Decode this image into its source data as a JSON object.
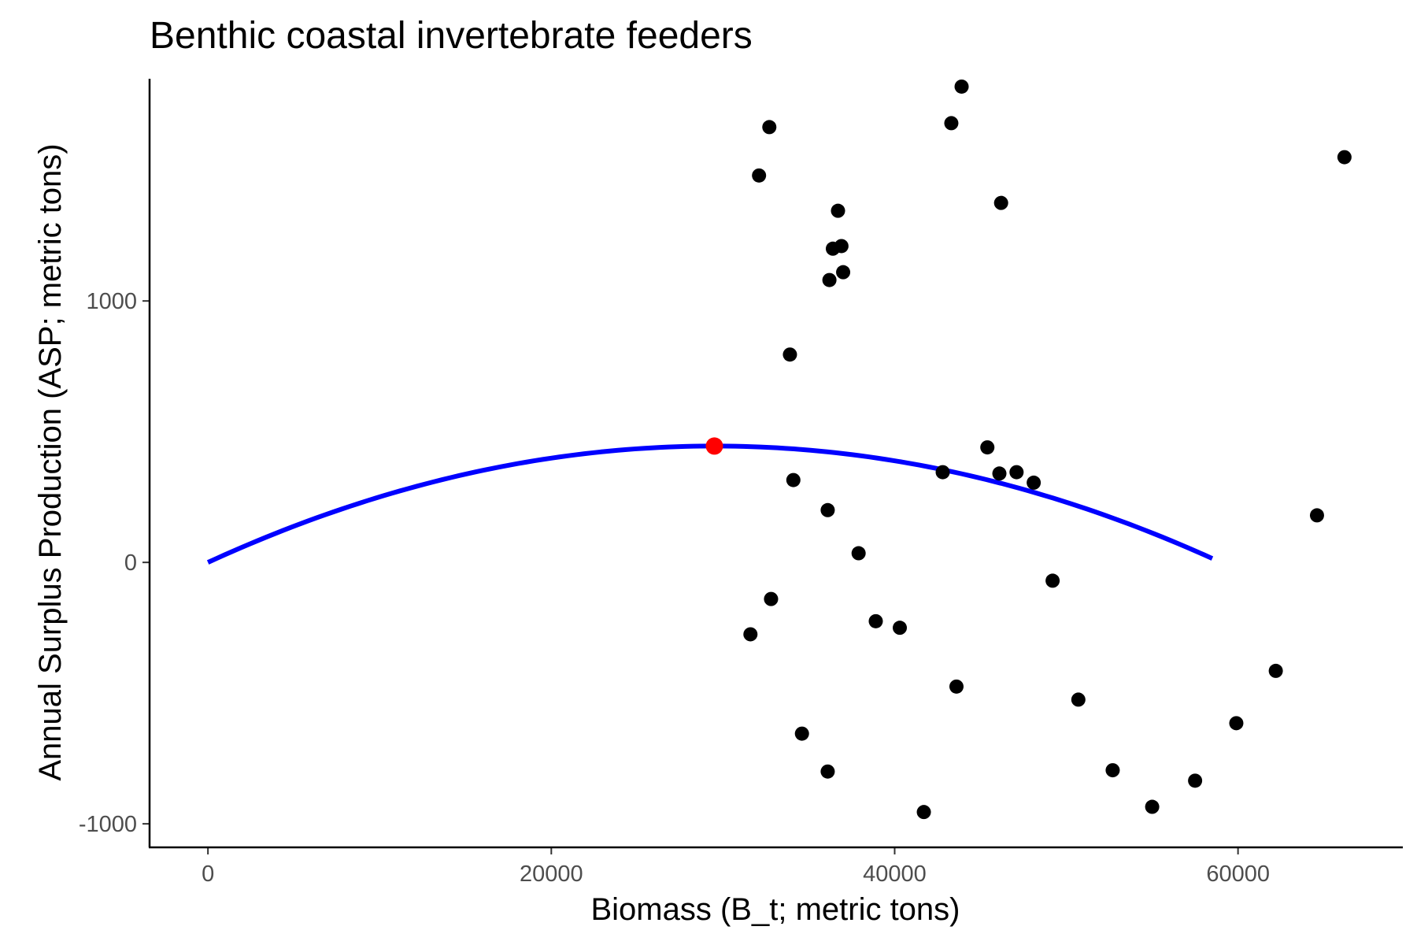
{
  "chart_data": {
    "type": "scatter",
    "title": "Benthic coastal invertebrate feeders",
    "xlabel": "Biomass (B_t; metric tons)",
    "ylabel": "Annual Surplus Production (ASP; metric tons)",
    "xlim": [
      -3400,
      69600
    ],
    "ylim": [
      -1090,
      1850
    ],
    "x_ticks": [
      0,
      20000,
      40000,
      60000
    ],
    "x_tick_labels": [
      "0",
      "20000",
      "40000",
      "60000"
    ],
    "y_ticks": [
      -1000,
      0,
      1000
    ],
    "y_tick_labels": [
      "-1000",
      "0",
      "1000"
    ],
    "grid": false,
    "colors": {
      "points": "#000000",
      "curve": "#0000ff",
      "peak": "#ff0000",
      "axis": "#000000"
    },
    "series": [
      {
        "type": "scatter",
        "points": [
          [
            31600,
            -275
          ],
          [
            32100,
            1480
          ],
          [
            32700,
            1665
          ],
          [
            32800,
            -140
          ],
          [
            33900,
            795
          ],
          [
            34100,
            315
          ],
          [
            34600,
            -655
          ],
          [
            36100,
            200
          ],
          [
            36100,
            -800
          ],
          [
            36200,
            1080
          ],
          [
            36400,
            1200
          ],
          [
            36700,
            1345
          ],
          [
            36900,
            1210
          ],
          [
            37000,
            1110
          ],
          [
            37900,
            35
          ],
          [
            38900,
            -225
          ],
          [
            40300,
            -250
          ],
          [
            41700,
            -955
          ],
          [
            42800,
            345
          ],
          [
            43300,
            1680
          ],
          [
            43600,
            -475
          ],
          [
            43900,
            1820
          ],
          [
            45400,
            440
          ],
          [
            46100,
            340
          ],
          [
            46200,
            1375
          ],
          [
            47100,
            345
          ],
          [
            48100,
            305
          ],
          [
            49200,
            -70
          ],
          [
            50700,
            -525
          ],
          [
            52700,
            -795
          ],
          [
            55000,
            -935
          ],
          [
            57500,
            -835
          ],
          [
            59900,
            -615
          ],
          [
            62200,
            -415
          ],
          [
            64600,
            180
          ],
          [
            66200,
            1550
          ]
        ]
      },
      {
        "type": "line",
        "shape": "parabola",
        "x_start": 0,
        "x_end": 58500,
        "peak": [
          29500,
          445
        ]
      },
      {
        "type": "point",
        "x": 29500,
        "y": 445
      }
    ]
  }
}
